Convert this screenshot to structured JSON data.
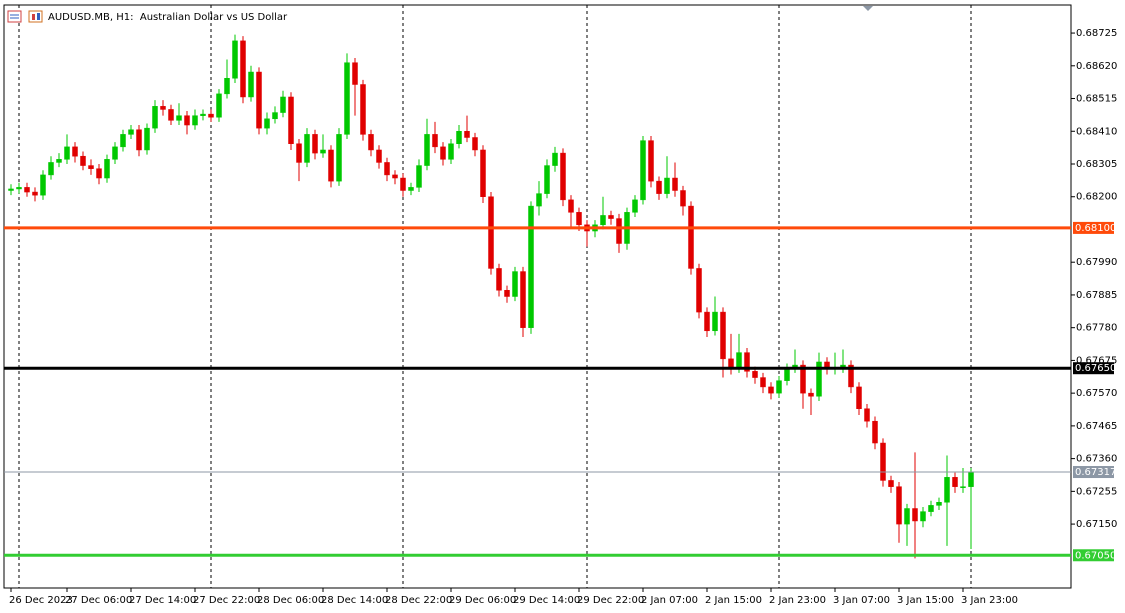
{
  "chart_data": {
    "type": "candlestick",
    "title": "AUDUSD.MB, H1:  Australian Dollar vs US Dollar",
    "categories": [
      "26 Dec 2023",
      null,
      null,
      null,
      null,
      null,
      null,
      "27 Dec 06:00",
      null,
      null,
      null,
      null,
      null,
      null,
      null,
      "27 Dec 14:00",
      null,
      null,
      null,
      null,
      null,
      null,
      null,
      "27 Dec 22:00",
      null,
      null,
      null,
      null,
      null,
      null,
      null,
      "28 Dec 06:00",
      null,
      null,
      null,
      null,
      null,
      null,
      null,
      "28 Dec 14:00",
      null,
      null,
      null,
      null,
      null,
      null,
      null,
      "28 Dec 22:00",
      null,
      null,
      null,
      null,
      null,
      null,
      null,
      "29 Dec 06:00",
      null,
      null,
      null,
      null,
      null,
      null,
      null,
      "29 Dec 14:00",
      null,
      null,
      null,
      null,
      null,
      null,
      null,
      "29 Dec 22:00",
      null,
      null,
      null,
      null,
      null,
      null,
      null,
      "2 Jan 07:00",
      null,
      null,
      null,
      null,
      null,
      null,
      null,
      "2 Jan 15:00",
      null,
      null,
      null,
      null,
      null,
      null,
      null,
      "2 Jan 23:00",
      null,
      null,
      null,
      null,
      null,
      null,
      null,
      "3 Jan 07:00",
      null,
      null,
      null,
      null,
      null,
      null,
      null,
      "3 Jan 15:00",
      null,
      null,
      null,
      null,
      null,
      null,
      null,
      "3 Jan 23:00",
      null
    ],
    "open": [
      0.6822,
      0.68225,
      0.6823,
      0.68215,
      0.68205,
      0.6827,
      0.6831,
      0.6832,
      0.6836,
      0.6833,
      0.683,
      0.6829,
      0.6826,
      0.6832,
      0.6836,
      0.684,
      0.68415,
      0.6835,
      0.6842,
      0.6849,
      0.6848,
      0.68445,
      0.6846,
      0.6843,
      0.6846,
      0.68465,
      0.68455,
      0.6853,
      0.6858,
      0.687,
      0.6852,
      0.686,
      0.6842,
      0.6845,
      0.6847,
      0.6852,
      0.6837,
      0.6831,
      0.684,
      0.6834,
      0.6835,
      0.6825,
      0.684,
      0.6863,
      0.6856,
      0.684,
      0.6835,
      0.6831,
      0.6827,
      0.6826,
      0.6822,
      0.6823,
      0.683,
      0.684,
      0.6836,
      0.6832,
      0.6837,
      0.6841,
      0.6839,
      0.6835,
      0.682,
      0.6797,
      0.679,
      0.6788,
      0.6796,
      0.6778,
      0.6817,
      0.6821,
      0.683,
      0.6834,
      0.6819,
      0.6815,
      0.6811,
      0.6809,
      0.6811,
      0.6814,
      0.6813,
      0.6805,
      0.6815,
      0.6819,
      0.6838,
      0.6825,
      0.6821,
      0.6826,
      0.6822,
      0.6817,
      0.6797,
      0.6783,
      0.6777,
      0.6783,
      0.6768,
      0.6765,
      0.677,
      0.6764,
      0.6762,
      0.6759,
      0.6757,
      0.6761,
      0.6765,
      0.6766,
      0.6757,
      0.6756,
      0.6767,
      0.6765,
      0.6765,
      0.6766,
      0.6759,
      0.6752,
      0.6748,
      0.6741,
      0.6729,
      0.6727,
      0.6715,
      0.672,
      0.6716,
      0.6719,
      0.6721,
      0.6722,
      0.673,
      0.6727,
      0.6727
    ],
    "high": [
      0.6824,
      0.68245,
      0.68245,
      0.6823,
      0.68285,
      0.6833,
      0.6834,
      0.684,
      0.68375,
      0.68345,
      0.6832,
      0.68305,
      0.68335,
      0.68375,
      0.68415,
      0.6843,
      0.6843,
      0.68435,
      0.6851,
      0.6851,
      0.68495,
      0.685,
      0.68475,
      0.6848,
      0.6848,
      0.6848,
      0.68545,
      0.6864,
      0.6872,
      0.68715,
      0.6862,
      0.68615,
      0.6847,
      0.6849,
      0.6854,
      0.68535,
      0.68385,
      0.6842,
      0.68415,
      0.684,
      0.68365,
      0.6842,
      0.6866,
      0.68645,
      0.68575,
      0.68415,
      0.68365,
      0.68325,
      0.68285,
      0.68275,
      0.68245,
      0.6832,
      0.6845,
      0.6844,
      0.68375,
      0.68385,
      0.6843,
      0.6846,
      0.68405,
      0.68365,
      0.68215,
      0.67985,
      0.67915,
      0.67975,
      0.67975,
      0.68185,
      0.6825,
      0.6832,
      0.6836,
      0.68355,
      0.68205,
      0.68165,
      0.68125,
      0.68125,
      0.682,
      0.68155,
      0.68145,
      0.68165,
      0.68205,
      0.68395,
      0.68395,
      0.68265,
      0.6833,
      0.6831,
      0.68235,
      0.68185,
      0.67985,
      0.67845,
      0.6788,
      0.67845,
      0.6776,
      0.6776,
      0.67715,
      0.67655,
      0.67635,
      0.67605,
      0.67625,
      0.67665,
      0.6771,
      0.67675,
      0.67585,
      0.677,
      0.67685,
      0.677,
      0.6771,
      0.67675,
      0.67605,
      0.67535,
      0.67495,
      0.67425,
      0.67305,
      0.67285,
      0.67215,
      0.6738,
      0.67205,
      0.67225,
      0.67235,
      0.6737,
      0.67315,
      0.6733,
      0.6733
    ],
    "low": [
      0.68205,
      0.6821,
      0.682,
      0.68185,
      0.6819,
      0.68255,
      0.68295,
      0.68305,
      0.6831,
      0.68285,
      0.6827,
      0.6824,
      0.68245,
      0.68305,
      0.68345,
      0.68385,
      0.6833,
      0.68335,
      0.68405,
      0.6846,
      0.6843,
      0.6843,
      0.684,
      0.68415,
      0.68445,
      0.6844,
      0.6844,
      0.68515,
      0.68565,
      0.685,
      0.68505,
      0.684,
      0.684,
      0.68435,
      0.68455,
      0.6835,
      0.6825,
      0.68295,
      0.6832,
      0.68325,
      0.6823,
      0.68235,
      0.68385,
      0.6846,
      0.6838,
      0.6833,
      0.6829,
      0.6825,
      0.6824,
      0.682,
      0.68205,
      0.68215,
      0.68285,
      0.6834,
      0.683,
      0.68305,
      0.68355,
      0.68375,
      0.6833,
      0.6818,
      0.6795,
      0.6788,
      0.6786,
      0.67865,
      0.6775,
      0.6776,
      0.6814,
      0.68195,
      0.6828,
      0.6817,
      0.681,
      0.6809,
      0.6804,
      0.6807,
      0.68095,
      0.6811,
      0.6802,
      0.6803,
      0.68135,
      0.68175,
      0.6823,
      0.6819,
      0.68195,
      0.682,
      0.6814,
      0.6795,
      0.6781,
      0.6775,
      0.67755,
      0.6762,
      0.6763,
      0.67635,
      0.6762,
      0.676,
      0.6757,
      0.6755,
      0.67555,
      0.67595,
      0.67635,
      0.6752,
      0.675,
      0.67545,
      0.6763,
      0.6763,
      0.67635,
      0.6757,
      0.675,
      0.6746,
      0.6739,
      0.6727,
      0.6725,
      0.6709,
      0.6708,
      0.6704,
      0.6714,
      0.67175,
      0.67195,
      0.6708,
      0.6725,
      0.6725,
      0.6707
    ],
    "close": [
      0.68225,
      0.6823,
      0.68215,
      0.68205,
      0.6827,
      0.6831,
      0.6832,
      0.6836,
      0.6833,
      0.683,
      0.6829,
      0.6826,
      0.6832,
      0.6836,
      0.684,
      0.68415,
      0.6835,
      0.6842,
      0.6849,
      0.6848,
      0.68445,
      0.6846,
      0.6843,
      0.6846,
      0.68465,
      0.68455,
      0.6853,
      0.6858,
      0.687,
      0.6852,
      0.686,
      0.6842,
      0.6845,
      0.6847,
      0.6852,
      0.6837,
      0.6831,
      0.684,
      0.6834,
      0.6835,
      0.6825,
      0.684,
      0.6863,
      0.6856,
      0.684,
      0.6835,
      0.6831,
      0.6827,
      0.6826,
      0.6822,
      0.6823,
      0.683,
      0.684,
      0.6836,
      0.6832,
      0.6837,
      0.6841,
      0.6839,
      0.6835,
      0.682,
      0.6797,
      0.679,
      0.6788,
      0.6796,
      0.6778,
      0.6817,
      0.6821,
      0.683,
      0.6834,
      0.6819,
      0.6815,
      0.6811,
      0.6809,
      0.6811,
      0.6814,
      0.6813,
      0.6805,
      0.6815,
      0.6819,
      0.6838,
      0.6825,
      0.6821,
      0.6826,
      0.6822,
      0.6817,
      0.6797,
      0.6783,
      0.6777,
      0.6783,
      0.6768,
      0.6765,
      0.677,
      0.6764,
      0.6762,
      0.6759,
      0.6757,
      0.6761,
      0.6765,
      0.6766,
      0.6757,
      0.6756,
      0.6767,
      0.6765,
      0.6765,
      0.6766,
      0.6759,
      0.6752,
      0.6748,
      0.6741,
      0.6729,
      0.6727,
      0.6715,
      0.672,
      0.6716,
      0.6719,
      0.6721,
      0.6722,
      0.673,
      0.6727,
      0.6727,
      0.67317
    ],
    "up_color": "#00c800",
    "down_color": "#e00000",
    "ylim": [
      0.66945,
      0.68815
    ],
    "yticks": [
      0.68725,
      {
        "value": 0.6862,
        "label": "0.68620"
      },
      0.68515,
      {
        "value": 0.6841,
        "label": "0.68410"
      },
      0.68305,
      {
        "value": 0.682,
        "label": "0.68200"
      },
      {
        "value": 0.6799,
        "label": "0.67990"
      },
      0.67885,
      {
        "value": 0.6778,
        "label": "0.67780"
      },
      0.67675,
      {
        "value": 0.6757,
        "label": "0.67570"
      },
      0.67465,
      {
        "value": 0.6736,
        "label": "0.67360"
      },
      0.67255,
      {
        "value": 0.6715,
        "label": "0.67150"
      }
    ],
    "levels": [
      {
        "value": 0.681,
        "label": "0.68100",
        "color": "#ff4a0a"
      },
      {
        "value": 0.6765,
        "label": "0.67650",
        "color": "#000000"
      },
      {
        "value": 0.67317,
        "label": "0.67317",
        "color": "#8c97a5"
      },
      {
        "value": 0.6705,
        "label": "0.67050",
        "color": "#32cd32"
      }
    ]
  }
}
